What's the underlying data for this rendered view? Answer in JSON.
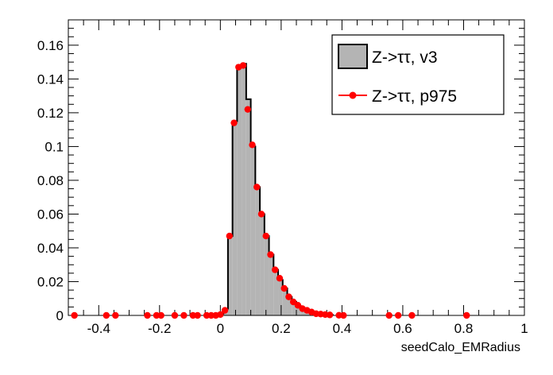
{
  "chart_data": {
    "type": "histogram",
    "xlabel": "seedCalo_EMRadius",
    "ylabel": "",
    "xlim": [
      -0.5,
      1.0
    ],
    "ylim": [
      0,
      0.175
    ],
    "x_ticks": [
      -0.4,
      -0.2,
      0,
      0.2,
      0.4,
      0.6,
      0.8,
      1
    ],
    "x_tick_labels": [
      "-0.4",
      "-0.2",
      "0",
      "0.2",
      "0.4",
      "0.6",
      "0.8",
      "1"
    ],
    "y_ticks": [
      0,
      0.02,
      0.04,
      0.06,
      0.08,
      0.1,
      0.12,
      0.14,
      0.16
    ],
    "y_tick_labels": [
      "0",
      "0.02",
      "0.04",
      "0.06",
      "0.08",
      "0.1",
      "0.12",
      "0.14",
      "0.16"
    ],
    "bin_width": 0.015,
    "legend": {
      "position": "top-right",
      "entries": [
        {
          "label": "Z->ττ, v3",
          "style": "filled",
          "color": "#b4b4b4"
        },
        {
          "label": "Z->ττ, p975",
          "style": "marker",
          "color": "#ff0000"
        }
      ]
    },
    "series": [
      {
        "name": "Z->ττ, v3",
        "style": "filled-step",
        "fill": "#b4b4b4",
        "line": "#000000",
        "bins": [
          {
            "x0": -0.005,
            "x1": 0.01,
            "y": 0.001
          },
          {
            "x0": 0.01,
            "x1": 0.025,
            "y": 0.004
          },
          {
            "x0": 0.025,
            "x1": 0.04,
            "y": 0.047
          },
          {
            "x0": 0.04,
            "x1": 0.055,
            "y": 0.115
          },
          {
            "x0": 0.055,
            "x1": 0.07,
            "y": 0.148
          },
          {
            "x0": 0.07,
            "x1": 0.085,
            "y": 0.149
          },
          {
            "x0": 0.085,
            "x1": 0.1,
            "y": 0.128
          },
          {
            "x0": 0.1,
            "x1": 0.115,
            "y": 0.1
          },
          {
            "x0": 0.115,
            "x1": 0.13,
            "y": 0.076
          },
          {
            "x0": 0.13,
            "x1": 0.145,
            "y": 0.06
          },
          {
            "x0": 0.145,
            "x1": 0.16,
            "y": 0.047
          },
          {
            "x0": 0.16,
            "x1": 0.175,
            "y": 0.036
          },
          {
            "x0": 0.175,
            "x1": 0.19,
            "y": 0.027
          },
          {
            "x0": 0.19,
            "x1": 0.205,
            "y": 0.021
          },
          {
            "x0": 0.205,
            "x1": 0.22,
            "y": 0.016
          },
          {
            "x0": 0.22,
            "x1": 0.235,
            "y": 0.011
          },
          {
            "x0": 0.235,
            "x1": 0.25,
            "y": 0.008
          },
          {
            "x0": 0.25,
            "x1": 0.265,
            "y": 0.0055
          },
          {
            "x0": 0.265,
            "x1": 0.28,
            "y": 0.004
          },
          {
            "x0": 0.28,
            "x1": 0.295,
            "y": 0.0025
          },
          {
            "x0": 0.295,
            "x1": 0.31,
            "y": 0.0015
          },
          {
            "x0": 0.31,
            "x1": 0.325,
            "y": 0.001
          },
          {
            "x0": 0.325,
            "x1": 0.34,
            "y": 0.0008
          },
          {
            "x0": 0.34,
            "x1": 0.355,
            "y": 0.0005
          },
          {
            "x0": 0.355,
            "x1": 0.37,
            "y": 0.0003
          }
        ]
      },
      {
        "name": "Z->ττ, p975",
        "style": "marker",
        "color": "#ff0000",
        "points": [
          {
            "x": -0.48,
            "y": 0
          },
          {
            "x": -0.375,
            "y": 0
          },
          {
            "x": -0.345,
            "y": 0
          },
          {
            "x": -0.24,
            "y": 0
          },
          {
            "x": -0.21,
            "y": 0
          },
          {
            "x": -0.195,
            "y": 0
          },
          {
            "x": -0.15,
            "y": 0
          },
          {
            "x": -0.12,
            "y": 0
          },
          {
            "x": -0.09,
            "y": 0
          },
          {
            "x": -0.075,
            "y": 0
          },
          {
            "x": -0.045,
            "y": 0
          },
          {
            "x": -0.03,
            "y": 0
          },
          {
            "x": -0.015,
            "y": 0
          },
          {
            "x": 0.0,
            "y": 0.0005
          },
          {
            "x": 0.015,
            "y": 0.003
          },
          {
            "x": 0.03,
            "y": 0.047
          },
          {
            "x": 0.045,
            "y": 0.114
          },
          {
            "x": 0.06,
            "y": 0.147
          },
          {
            "x": 0.075,
            "y": 0.148
          },
          {
            "x": 0.09,
            "y": 0.122
          },
          {
            "x": 0.105,
            "y": 0.101
          },
          {
            "x": 0.12,
            "y": 0.076
          },
          {
            "x": 0.135,
            "y": 0.06
          },
          {
            "x": 0.15,
            "y": 0.047
          },
          {
            "x": 0.165,
            "y": 0.036
          },
          {
            "x": 0.18,
            "y": 0.027
          },
          {
            "x": 0.195,
            "y": 0.022
          },
          {
            "x": 0.21,
            "y": 0.016
          },
          {
            "x": 0.225,
            "y": 0.011
          },
          {
            "x": 0.24,
            "y": 0.008
          },
          {
            "x": 0.255,
            "y": 0.006
          },
          {
            "x": 0.27,
            "y": 0.004
          },
          {
            "x": 0.285,
            "y": 0.003
          },
          {
            "x": 0.3,
            "y": 0.002
          },
          {
            "x": 0.315,
            "y": 0.001
          },
          {
            "x": 0.33,
            "y": 0.0008
          },
          {
            "x": 0.345,
            "y": 0.0005
          },
          {
            "x": 0.36,
            "y": 0.0003
          },
          {
            "x": 0.39,
            "y": 0.0001
          },
          {
            "x": 0.405,
            "y": 0
          },
          {
            "x": 0.555,
            "y": 0
          },
          {
            "x": 0.585,
            "y": 0
          },
          {
            "x": 0.63,
            "y": 0
          },
          {
            "x": 0.81,
            "y": 0
          }
        ]
      }
    ]
  }
}
